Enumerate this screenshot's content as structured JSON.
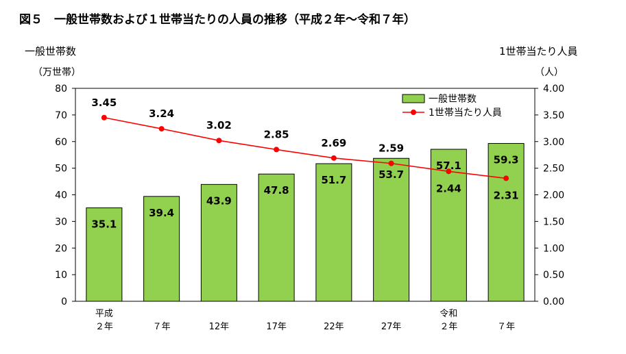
{
  "chart_data": {
    "type": "bar",
    "title": "図５　一般世帯数および１世帯当たりの人員の推移（平成２年〜令和７年）",
    "categories": [
      "平成\n２年",
      "７年",
      "12年",
      "17年",
      "22年",
      "27年",
      "令和\n２年",
      "７年"
    ],
    "y_left": {
      "label": "一般世帯数",
      "unit": "（万世帯）",
      "range": [
        0,
        80
      ],
      "ticks": [
        "0",
        "10",
        "20",
        "30",
        "40",
        "50",
        "60",
        "70",
        "80"
      ]
    },
    "y_right": {
      "label": "1世帯当たり人員",
      "unit": "（人）",
      "range": [
        0,
        4
      ],
      "ticks": [
        "0.00",
        "0.50",
        "1.00",
        "1.50",
        "2.00",
        "2.50",
        "3.00",
        "3.50",
        "4.00"
      ]
    },
    "series": [
      {
        "name": "一般世帯数",
        "type": "bar",
        "axis": "left",
        "color": "#92D050",
        "values": [
          35.1,
          39.4,
          43.9,
          47.8,
          51.7,
          53.7,
          57.1,
          59.3
        ],
        "labels": [
          "35.1",
          "39.4",
          "43.9",
          "47.8",
          "51.7",
          "53.7",
          "57.1",
          "59.3"
        ]
      },
      {
        "name": "1世帯当たり人員",
        "type": "line",
        "axis": "right",
        "color": "#FF0000",
        "values": [
          3.45,
          3.24,
          3.02,
          2.85,
          2.69,
          2.59,
          2.44,
          2.31
        ],
        "labels": [
          "3.45",
          "3.24",
          "3.02",
          "2.85",
          "2.69",
          "2.59",
          "2.44",
          "2.31"
        ]
      }
    ],
    "legend": "top-right",
    "grid": false
  }
}
